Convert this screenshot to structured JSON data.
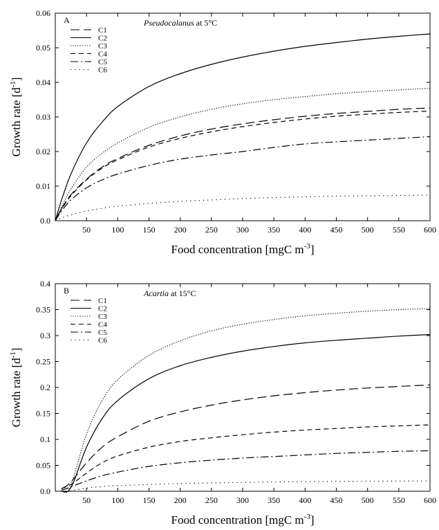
{
  "chart_data": [
    {
      "type": "line",
      "panel_letter": "A",
      "title": "Pseudocalanus at 5°C",
      "title_italic_part": "Pseudocalanus",
      "title_rest": " at 5°C",
      "xlabel": "Food concentration [mgC m-3]",
      "xlabel_main": "Food concentration [mgC m",
      "xlabel_sup": "-3",
      "xlabel_end": "]",
      "ylabel": "Growth rate [d-1]",
      "ylabel_main": "Growth rate [d",
      "ylabel_sup": "-1",
      "ylabel_end": "]",
      "xlim": [
        0,
        600
      ],
      "ylim": [
        0,
        0.06
      ],
      "x_ticks": [
        50,
        100,
        150,
        200,
        250,
        300,
        350,
        400,
        450,
        500,
        550,
        600
      ],
      "y_ticks": [
        "0.0",
        "0.01",
        "0.02",
        "0.03",
        "0.04",
        "0.05",
        "0.06"
      ],
      "legend_position": "top-left",
      "x": [
        0,
        10,
        25,
        50,
        75,
        100,
        150,
        200,
        250,
        300,
        350,
        400,
        450,
        500,
        550,
        600
      ],
      "series": [
        {
          "name": "C1",
          "dash": "long-dash",
          "values": [
            0,
            0.0035,
            0.0075,
            0.012,
            0.0155,
            0.018,
            0.0218,
            0.0245,
            0.0265,
            0.028,
            0.0292,
            0.0302,
            0.031,
            0.0316,
            0.0322,
            0.0326
          ]
        },
        {
          "name": "C2",
          "dash": "solid",
          "values": [
            0,
            0.006,
            0.0135,
            0.0225,
            0.0285,
            0.033,
            0.0388,
            0.0425,
            0.0452,
            0.0473,
            0.049,
            0.0504,
            0.0515,
            0.0525,
            0.0533,
            0.054
          ]
        },
        {
          "name": "C3",
          "dash": "dotted",
          "values": [
            0,
            0.004,
            0.0092,
            0.0155,
            0.0195,
            0.0225,
            0.027,
            0.03,
            0.0322,
            0.0338,
            0.035,
            0.0359,
            0.0367,
            0.0373,
            0.0378,
            0.0383
          ]
        },
        {
          "name": "C4",
          "dash": "dashed",
          "values": [
            0,
            0.0033,
            0.0072,
            0.0118,
            0.0152,
            0.0176,
            0.0213,
            0.0238,
            0.0257,
            0.0272,
            0.0284,
            0.0294,
            0.0302,
            0.0308,
            0.0313,
            0.0317
          ]
        },
        {
          "name": "C5",
          "dash": "dash-dot",
          "values": [
            0,
            0.0028,
            0.006,
            0.0095,
            0.0118,
            0.0135,
            0.016,
            0.0178,
            0.019,
            0.02,
            0.0212,
            0.0222,
            0.0228,
            0.0233,
            0.0238,
            0.0243
          ]
        },
        {
          "name": "C6",
          "dash": "sparse-dotted",
          "values": [
            0,
            0.0008,
            0.0017,
            0.0028,
            0.0036,
            0.0042,
            0.005,
            0.0056,
            0.006,
            0.0064,
            0.0067,
            0.0069,
            0.0071,
            0.0072,
            0.0073,
            0.0074
          ]
        }
      ]
    },
    {
      "type": "line",
      "panel_letter": "B",
      "title": "Acartia at 15°C",
      "title_italic_part": "Acartia",
      "title_rest": " at 15°C",
      "xlabel": "Food concentration [mgC m-3]",
      "xlabel_main": "Food concentration [mgC m",
      "xlabel_sup": "-3",
      "xlabel_end": "]",
      "ylabel": "Growth rate [d-1]",
      "ylabel_main": "Growth rate [d",
      "ylabel_sup": "-1",
      "ylabel_end": "]",
      "xlim": [
        0,
        600
      ],
      "ylim": [
        0,
        0.4
      ],
      "x_ticks": [
        50,
        100,
        150,
        200,
        250,
        300,
        350,
        400,
        450,
        500,
        550,
        600
      ],
      "y_ticks": [
        "0.0",
        "0.05",
        "0.1",
        "0.15",
        "0.2",
        "0.25",
        "0.3",
        "0.35",
        "0.4"
      ],
      "legend_position": "top-left",
      "x": [
        10,
        20,
        30,
        50,
        75,
        100,
        150,
        200,
        250,
        300,
        350,
        400,
        450,
        500,
        550,
        600
      ],
      "series": [
        {
          "name": "C1",
          "dash": "long-dash",
          "values": [
            0.005,
            0.012,
            0.025,
            0.055,
            0.085,
            0.105,
            0.135,
            0.153,
            0.166,
            0.176,
            0.184,
            0.19,
            0.195,
            0.199,
            0.202,
            0.205
          ]
        },
        {
          "name": "C2",
          "dash": "solid",
          "values": [
            0,
            0.0,
            0.02,
            0.085,
            0.14,
            0.175,
            0.217,
            0.242,
            0.258,
            0.27,
            0.279,
            0.286,
            0.291,
            0.295,
            0.299,
            0.302
          ]
        },
        {
          "name": "C3",
          "dash": "dotted",
          "values": [
            0,
            0.0,
            0.03,
            0.11,
            0.175,
            0.215,
            0.262,
            0.29,
            0.309,
            0.322,
            0.331,
            0.338,
            0.343,
            0.347,
            0.35,
            0.352
          ]
        },
        {
          "name": "C4",
          "dash": "dashed",
          "values": [
            0.005,
            0.01,
            0.017,
            0.035,
            0.055,
            0.068,
            0.085,
            0.096,
            0.103,
            0.109,
            0.114,
            0.118,
            0.121,
            0.124,
            0.126,
            0.128
          ]
        },
        {
          "name": "C5",
          "dash": "dash-dot",
          "values": [
            0.002,
            0.006,
            0.011,
            0.02,
            0.03,
            0.037,
            0.048,
            0.055,
            0.06,
            0.064,
            0.067,
            0.07,
            0.073,
            0.075,
            0.077,
            0.078
          ]
        },
        {
          "name": "C6",
          "dash": "sparse-dotted",
          "values": [
            0,
            0.0,
            0.002,
            0.006,
            0.009,
            0.011,
            0.013,
            0.015,
            0.016,
            0.017,
            0.018,
            0.0185,
            0.019,
            0.0193,
            0.0196,
            0.0198
          ]
        }
      ]
    }
  ]
}
